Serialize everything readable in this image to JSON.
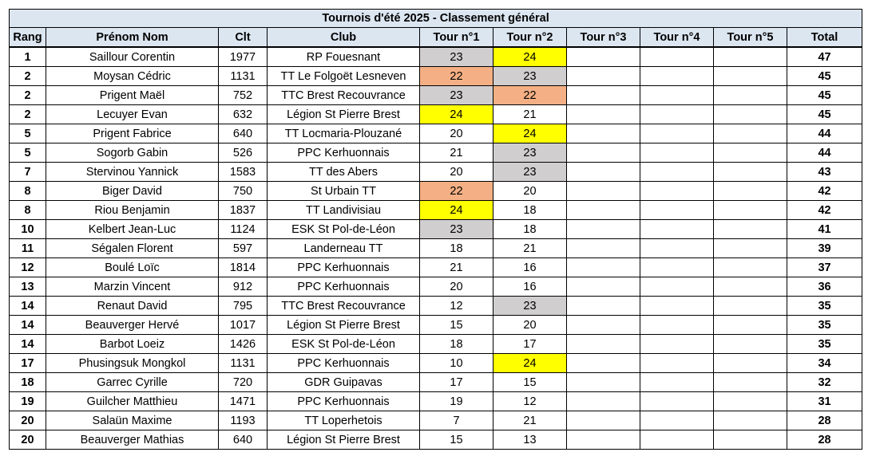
{
  "title": "Tournois d'été 2025 - Classement général",
  "headers": [
    "Rang",
    "Prénom Nom",
    "Clt",
    "Club",
    "Tour n°1",
    "Tour n°2",
    "Tour n°3",
    "Tour n°4",
    "Tour n°5",
    "Total"
  ],
  "highlight_colors": {
    "gold": "#ffff00",
    "silver": "#d0cece",
    "bronze": "#f4b084"
  },
  "rows": [
    {
      "rang": "1",
      "nom": "Saillour Corentin",
      "clt": "1977",
      "club": "RP Fouesnant",
      "t1": "23",
      "t2": "24",
      "t3": "",
      "t4": "",
      "t5": "",
      "total": "47",
      "t1_hl": "silver",
      "t2_hl": "gold"
    },
    {
      "rang": "2",
      "nom": "Moysan Cédric",
      "clt": "1131",
      "club": "TT Le Folgoët Lesneven",
      "t1": "22",
      "t2": "23",
      "t3": "",
      "t4": "",
      "t5": "",
      "total": "45",
      "t1_hl": "bronze",
      "t2_hl": "silver"
    },
    {
      "rang": "2",
      "nom": "Prigent Maël",
      "clt": "752",
      "club": "TTC Brest Recouvrance",
      "t1": "23",
      "t2": "22",
      "t3": "",
      "t4": "",
      "t5": "",
      "total": "45",
      "t1_hl": "silver",
      "t2_hl": "bronze"
    },
    {
      "rang": "2",
      "nom": "Lecuyer Evan",
      "clt": "632",
      "club": "Légion St Pierre Brest",
      "t1": "24",
      "t2": "21",
      "t3": "",
      "t4": "",
      "t5": "",
      "total": "45",
      "t1_hl": "gold",
      "t2_hl": ""
    },
    {
      "rang": "5",
      "nom": "Prigent Fabrice",
      "clt": "640",
      "club": "TT Locmaria-Plouzané",
      "t1": "20",
      "t2": "24",
      "t3": "",
      "t4": "",
      "t5": "",
      "total": "44",
      "t1_hl": "",
      "t2_hl": "gold"
    },
    {
      "rang": "5",
      "nom": "Sogorb Gabin",
      "clt": "526",
      "club": "PPC Kerhuonnais",
      "t1": "21",
      "t2": "23",
      "t3": "",
      "t4": "",
      "t5": "",
      "total": "44",
      "t1_hl": "",
      "t2_hl": "silver"
    },
    {
      "rang": "7",
      "nom": "Stervinou Yannick",
      "clt": "1583",
      "club": "TT des Abers",
      "t1": "20",
      "t2": "23",
      "t3": "",
      "t4": "",
      "t5": "",
      "total": "43",
      "t1_hl": "",
      "t2_hl": "silver"
    },
    {
      "rang": "8",
      "nom": "Biger David",
      "clt": "750",
      "club": "St Urbain TT",
      "t1": "22",
      "t2": "20",
      "t3": "",
      "t4": "",
      "t5": "",
      "total": "42",
      "t1_hl": "bronze",
      "t2_hl": ""
    },
    {
      "rang": "8",
      "nom": "Riou Benjamin",
      "clt": "1837",
      "club": "TT Landivisiau",
      "t1": "24",
      "t2": "18",
      "t3": "",
      "t4": "",
      "t5": "",
      "total": "42",
      "t1_hl": "gold",
      "t2_hl": ""
    },
    {
      "rang": "10",
      "nom": "Kelbert Jean-Luc",
      "clt": "1124",
      "club": "ESK St Pol-de-Léon",
      "t1": "23",
      "t2": "18",
      "t3": "",
      "t4": "",
      "t5": "",
      "total": "41",
      "t1_hl": "silver",
      "t2_hl": ""
    },
    {
      "rang": "11",
      "nom": "Ségalen Florent",
      "clt": "597",
      "club": "Landerneau TT",
      "t1": "18",
      "t2": "21",
      "t3": "",
      "t4": "",
      "t5": "",
      "total": "39",
      "t1_hl": "",
      "t2_hl": ""
    },
    {
      "rang": "12",
      "nom": "Boulé Loïc",
      "clt": "1814",
      "club": "PPC Kerhuonnais",
      "t1": "21",
      "t2": "16",
      "t3": "",
      "t4": "",
      "t5": "",
      "total": "37",
      "t1_hl": "",
      "t2_hl": ""
    },
    {
      "rang": "13",
      "nom": "Marzin Vincent",
      "clt": "912",
      "club": "PPC Kerhuonnais",
      "t1": "20",
      "t2": "16",
      "t3": "",
      "t4": "",
      "t5": "",
      "total": "36",
      "t1_hl": "",
      "t2_hl": ""
    },
    {
      "rang": "14",
      "nom": "Renaut David",
      "clt": "795",
      "club": "TTC Brest Recouvrance",
      "t1": "12",
      "t2": "23",
      "t3": "",
      "t4": "",
      "t5": "",
      "total": "35",
      "t1_hl": "",
      "t2_hl": "silver"
    },
    {
      "rang": "14",
      "nom": "Beauverger Hervé",
      "clt": "1017",
      "club": "Légion St Pierre Brest",
      "t1": "15",
      "t2": "20",
      "t3": "",
      "t4": "",
      "t5": "",
      "total": "35",
      "t1_hl": "",
      "t2_hl": ""
    },
    {
      "rang": "14",
      "nom": "Barbot Loeiz",
      "clt": "1426",
      "club": "ESK St Pol-de-Léon",
      "t1": "18",
      "t2": "17",
      "t3": "",
      "t4": "",
      "t5": "",
      "total": "35",
      "t1_hl": "",
      "t2_hl": ""
    },
    {
      "rang": "17",
      "nom": "Phusingsuk Mongkol",
      "clt": "1131",
      "club": "PPC Kerhuonnais",
      "t1": "10",
      "t2": "24",
      "t3": "",
      "t4": "",
      "t5": "",
      "total": "34",
      "t1_hl": "",
      "t2_hl": "gold"
    },
    {
      "rang": "18",
      "nom": "Garrec Cyrille",
      "clt": "720",
      "club": "GDR Guipavas",
      "t1": "17",
      "t2": "15",
      "t3": "",
      "t4": "",
      "t5": "",
      "total": "32",
      "t1_hl": "",
      "t2_hl": ""
    },
    {
      "rang": "19",
      "nom": "Guilcher Matthieu",
      "clt": "1471",
      "club": "PPC Kerhuonnais",
      "t1": "19",
      "t2": "12",
      "t3": "",
      "t4": "",
      "t5": "",
      "total": "31",
      "t1_hl": "",
      "t2_hl": ""
    },
    {
      "rang": "20",
      "nom": "Salaün Maxime",
      "clt": "1193",
      "club": "TT Loperhetois",
      "t1": "7",
      "t2": "21",
      "t3": "",
      "t4": "",
      "t5": "",
      "total": "28",
      "t1_hl": "",
      "t2_hl": ""
    },
    {
      "rang": "20",
      "nom": "Beauverger Mathias",
      "clt": "640",
      "club": "Légion St Pierre Brest",
      "t1": "15",
      "t2": "13",
      "t3": "",
      "t4": "",
      "t5": "",
      "total": "28",
      "t1_hl": "",
      "t2_hl": ""
    }
  ]
}
